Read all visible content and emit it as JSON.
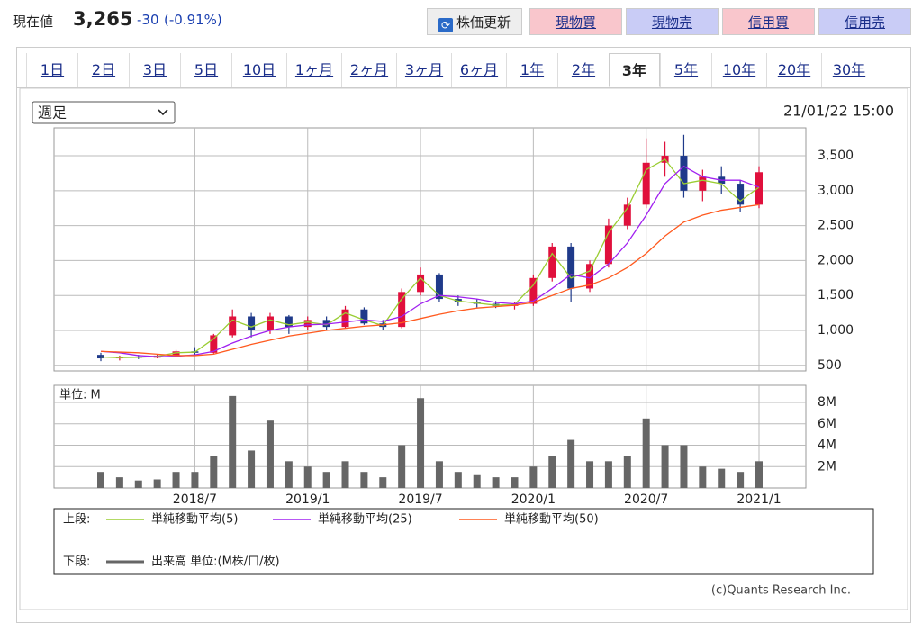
{
  "header": {
    "price_label": "現在値",
    "price": "3,265",
    "change": "-30",
    "change_pct": "(-0.91%)",
    "refresh_button": "株価更新",
    "buttons": [
      "現物買",
      "現物売",
      "信用買",
      "信用売"
    ]
  },
  "tabs": [
    {
      "label": "1日"
    },
    {
      "label": "2日"
    },
    {
      "label": "3日"
    },
    {
      "label": "5日"
    },
    {
      "label": "10日"
    },
    {
      "label": "1ヶ月"
    },
    {
      "label": "2ヶ月"
    },
    {
      "label": "3ヶ月"
    },
    {
      "label": "6ヶ月"
    },
    {
      "label": "1年"
    },
    {
      "label": "2年"
    },
    {
      "label": "3年",
      "selected": true
    },
    {
      "label": "5年"
    },
    {
      "label": "10年"
    },
    {
      "label": "20年"
    },
    {
      "label": "30年"
    }
  ],
  "period_select": "週足",
  "timestamp": "21/01/22 15:00",
  "credit": "(c)Quants Research Inc.",
  "chart_data": {
    "type": "candlestick",
    "categories": [
      null,
      null,
      null,
      null,
      null,
      "2018/7",
      null,
      null,
      null,
      null,
      null,
      "2019/1",
      null,
      null,
      null,
      null,
      null,
      "2019/7",
      null,
      null,
      null,
      null,
      null,
      "2020/1",
      null,
      null,
      null,
      null,
      null,
      "2020/7",
      null,
      null,
      null,
      null,
      null,
      "2021/1"
    ],
    "open": [
      650,
      600,
      620,
      610,
      640,
      700,
      680,
      930,
      1200,
      1000,
      1200,
      1050,
      1150,
      1050,
      1300,
      1100,
      1050,
      1550,
      1800,
      1450,
      1400,
      1380,
      1350,
      1380,
      1750,
      2200,
      1600,
      1950,
      2500,
      2800,
      3400,
      3500,
      3000,
      3200,
      3100,
      2800
    ],
    "high": [
      680,
      640,
      650,
      660,
      720,
      760,
      950,
      1300,
      1250,
      1250,
      1220,
      1200,
      1200,
      1350,
      1330,
      1150,
      1600,
      1900,
      1820,
      1500,
      1450,
      1420,
      1400,
      1800,
      2250,
      2250,
      2000,
      2600,
      2900,
      3750,
      3700,
      3800,
      3300,
      3350,
      3150,
      3350
    ],
    "low": [
      560,
      570,
      590,
      600,
      620,
      640,
      670,
      900,
      900,
      950,
      950,
      1000,
      1000,
      1030,
      1080,
      1000,
      1030,
      1500,
      1400,
      1350,
      1330,
      1320,
      1300,
      1350,
      1700,
      1400,
      1550,
      1900,
      2450,
      2750,
      3200,
      2900,
      2850,
      2950,
      2700,
      2750
    ],
    "close": [
      600,
      620,
      610,
      640,
      700,
      680,
      930,
      1200,
      1000,
      1200,
      1050,
      1150,
      1050,
      1300,
      1100,
      1050,
      1550,
      1800,
      1450,
      1400,
      1380,
      1350,
      1380,
      1750,
      2200,
      1600,
      1950,
      2500,
      2800,
      3400,
      3500,
      3000,
      3200,
      3100,
      2800,
      3265
    ],
    "up_color": "#e0103c",
    "down_color": "#1f3a8a",
    "ylim": [
      420,
      3900
    ],
    "yticks": [
      500,
      {
        "value": 1000,
        "label": "1,000"
      },
      {
        "value": 1500,
        "label": "1,500"
      },
      {
        "value": 2000,
        "label": "2,000"
      },
      {
        "value": 2500,
        "label": "2,500"
      },
      {
        "value": 3000,
        "label": "3,000"
      },
      {
        "value": 3500,
        "label": "3,500"
      }
    ],
    "grid": true,
    "legend_top_label": "上段:",
    "series": [
      {
        "name": "単純移動平均(5)",
        "color": "#9acd32",
        "values": [
          620,
          610,
          615,
          630,
          680,
          690,
          880,
          1150,
          1050,
          1150,
          1080,
          1120,
          1080,
          1250,
          1150,
          1070,
          1450,
          1750,
          1500,
          1420,
          1390,
          1360,
          1370,
          1650,
          2100,
          1750,
          1850,
          2400,
          2750,
          3300,
          3450,
          3100,
          3150,
          3100,
          2850,
          3050
        ]
      },
      {
        "name": "単純移動平均(25)",
        "color": "#a020f0",
        "values": [
          700,
          680,
          640,
          625,
          630,
          650,
          700,
          820,
          920,
          1000,
          1050,
          1080,
          1090,
          1120,
          1150,
          1130,
          1200,
          1380,
          1500,
          1480,
          1450,
          1400,
          1380,
          1420,
          1600,
          1800,
          1750,
          1950,
          2250,
          2650,
          3100,
          3350,
          3200,
          3150,
          3150,
          3050
        ]
      },
      {
        "name": "単純移動平均(50)",
        "color": "#ff5a1f",
        "values": [
          700,
          690,
          680,
          660,
          640,
          640,
          660,
          730,
          800,
          860,
          920,
          960,
          1000,
          1030,
          1060,
          1080,
          1110,
          1170,
          1230,
          1280,
          1320,
          1340,
          1360,
          1400,
          1500,
          1600,
          1650,
          1750,
          1900,
          2100,
          2350,
          2550,
          2650,
          2720,
          2760,
          2800
        ]
      }
    ],
    "volume": {
      "unit_label": "単位: M",
      "legend_label": "下段:",
      "name": "出来高 単位:(M株/口/枚)",
      "color": "#666666",
      "ylim": [
        0,
        9.6
      ],
      "yticks": [
        {
          "value": 2,
          "label": "2M"
        },
        {
          "value": 4,
          "label": "4M"
        },
        {
          "value": 6,
          "label": "6M"
        },
        {
          "value": 8,
          "label": "8M"
        }
      ],
      "values": [
        1.5,
        1.0,
        0.7,
        0.8,
        1.5,
        1.5,
        3.0,
        8.6,
        3.5,
        6.3,
        2.5,
        2.0,
        1.5,
        2.5,
        1.5,
        1.0,
        4.0,
        8.4,
        2.5,
        1.5,
        1.2,
        1.0,
        1.0,
        2.0,
        3.0,
        4.5,
        2.5,
        2.5,
        3.0,
        6.5,
        4.0,
        4.0,
        2.0,
        1.8,
        1.5,
        2.5
      ]
    }
  }
}
